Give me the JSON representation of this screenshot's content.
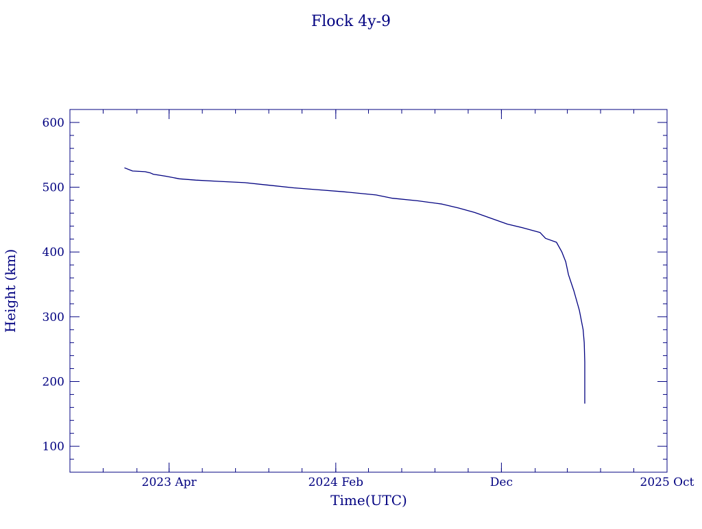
{
  "chart_data": {
    "type": "line",
    "title": "Flock 4y-9",
    "xlabel": "Time(UTC)",
    "ylabel": "Height (km)",
    "x_range": [
      "2022-10-01",
      "2025-10-01"
    ],
    "ylim": [
      60,
      620
    ],
    "y_ticks": [
      100,
      200,
      300,
      400,
      500,
      600
    ],
    "x_ticks": [
      {
        "label": "2023 Apr",
        "date": "2023-04-01"
      },
      {
        "label": "2024 Feb",
        "date": "2024-02-01"
      },
      {
        "label": "Dec",
        "date": "2024-12-01"
      },
      {
        "label": "2025 Oct",
        "date": "2025-10-01"
      }
    ],
    "grid": false,
    "series": [
      {
        "color": "#000080",
        "points": [
          {
            "x": "2023-01-09",
            "y": 530
          },
          {
            "x": "2023-01-24",
            "y": 525
          },
          {
            "x": "2023-02-16",
            "y": 524
          },
          {
            "x": "2023-02-26",
            "y": 522
          },
          {
            "x": "2023-03-03",
            "y": 520
          },
          {
            "x": "2023-03-26",
            "y": 517
          },
          {
            "x": "2023-04-20",
            "y": 513
          },
          {
            "x": "2023-05-20",
            "y": 511
          },
          {
            "x": "2023-07-04",
            "y": 509
          },
          {
            "x": "2023-08-18",
            "y": 507
          },
          {
            "x": "2023-10-02",
            "y": 503
          },
          {
            "x": "2023-11-16",
            "y": 499
          },
          {
            "x": "2024-01-01",
            "y": 496
          },
          {
            "x": "2024-02-15",
            "y": 493
          },
          {
            "x": "2024-04-15",
            "y": 488
          },
          {
            "x": "2024-05-15",
            "y": 483
          },
          {
            "x": "2024-06-30",
            "y": 479
          },
          {
            "x": "2024-08-14",
            "y": 474
          },
          {
            "x": "2024-09-13",
            "y": 468
          },
          {
            "x": "2024-10-13",
            "y": 461
          },
          {
            "x": "2024-11-12",
            "y": 452
          },
          {
            "x": "2024-12-12",
            "y": 443
          },
          {
            "x": "2025-01-11",
            "y": 437
          },
          {
            "x": "2025-02-10",
            "y": 430
          },
          {
            "x": "2025-02-20",
            "y": 421
          },
          {
            "x": "2025-03-12",
            "y": 415
          },
          {
            "x": "2025-03-22",
            "y": 400
          },
          {
            "x": "2025-03-29",
            "y": 385
          },
          {
            "x": "2025-04-03",
            "y": 365
          },
          {
            "x": "2025-04-13",
            "y": 340
          },
          {
            "x": "2025-04-23",
            "y": 310
          },
          {
            "x": "2025-04-30",
            "y": 280
          },
          {
            "x": "2025-05-02",
            "y": 260
          },
          {
            "x": "2025-05-03",
            "y": 230
          },
          {
            "x": "2025-05-03",
            "y": 200
          },
          {
            "x": "2025-05-03",
            "y": 166
          }
        ]
      }
    ]
  }
}
